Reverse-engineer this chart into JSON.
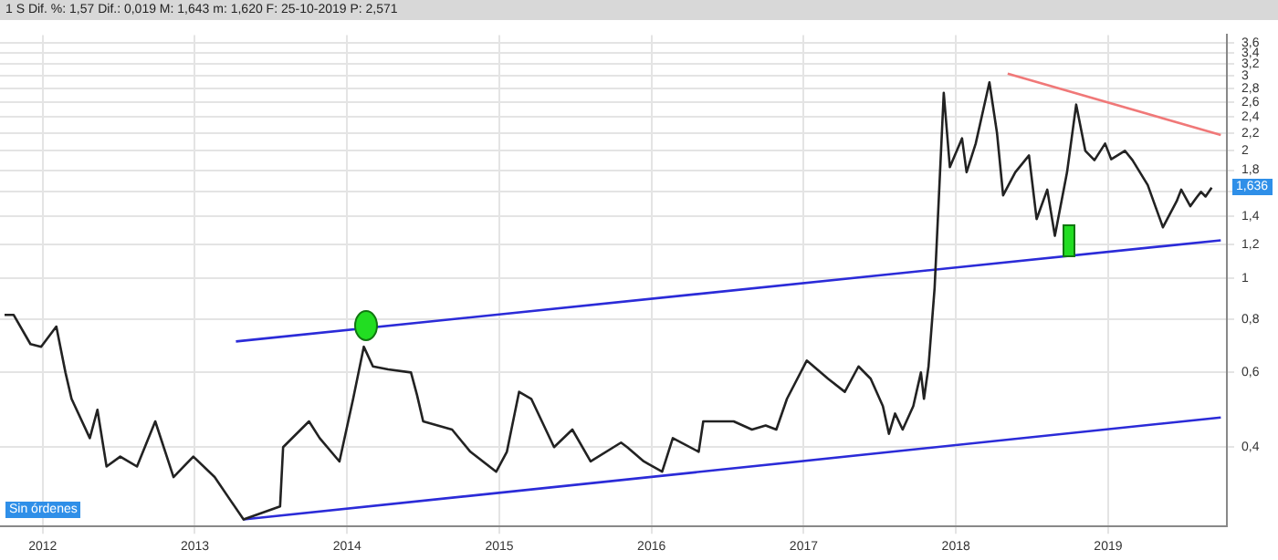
{
  "chart_data": {
    "type": "line",
    "title": "1 S  Dif. %: 1,57  Dif.: 0,019  M: 1,643  m: 1,620  F: 25-10-2019  P: 2,571",
    "log": true,
    "grid": true,
    "legend": false,
    "marker": "none",
    "line_style": "solid",
    "xlim": [
      2011.72,
      2019.78
    ],
    "xticks": [
      2012,
      2013,
      2014,
      2015,
      2016,
      2017,
      2018,
      2019
    ],
    "ylim": [
      0.26,
      3.75
    ],
    "yticks": [
      {
        "value": 0.4,
        "label": "0,4"
      },
      {
        "value": 0.6,
        "label": "0,6"
      },
      {
        "value": 0.8,
        "label": "0,8"
      },
      {
        "value": 1,
        "label": "1"
      },
      {
        "value": 1.2,
        "label": "1,2"
      },
      {
        "value": 1.4,
        "label": "1,4"
      },
      {
        "value": 1.6,
        "label": null
      },
      {
        "value": 1.8,
        "label": "1,8"
      },
      {
        "value": 2,
        "label": "2"
      },
      {
        "value": 2.2,
        "label": "2,2"
      },
      {
        "value": 2.4,
        "label": "2,4"
      },
      {
        "value": 2.6,
        "label": "2,6"
      },
      {
        "value": 2.8,
        "label": "2,8"
      },
      {
        "value": 3,
        "label": "3"
      },
      {
        "value": 3.2,
        "label": "3,2"
      },
      {
        "value": 3.4,
        "label": "3,4"
      },
      {
        "value": 3.6,
        "label": "3,6"
      }
    ],
    "annotations": [
      "Sin órdenes",
      "1,636"
    ],
    "series": [
      {
        "color": "#222222",
        "x": [
          2011.75,
          2011.81,
          2011.92,
          2011.99,
          2012.09,
          2012.15,
          2012.19,
          2012.31,
          2012.36,
          2012.42,
          2012.51,
          2012.62,
          2012.74,
          2012.86,
          2012.99,
          2013.13,
          2013.32,
          2013.56,
          2013.58,
          2013.75,
          2013.82,
          2013.95,
          2014.04,
          2014.11,
          2014.17,
          2014.27,
          2014.42,
          2014.46,
          2014.5,
          2014.69,
          2014.81,
          2014.98,
          2015.05,
          2015.13,
          2015.21,
          2015.28,
          2015.36,
          2015.48,
          2015.6,
          2015.8,
          2015.84,
          2015.95,
          2016.07,
          2016.14,
          2016.31,
          2016.34,
          2016.54,
          2016.66,
          2016.75,
          2016.82,
          2016.89,
          2017.02,
          2017.16,
          2017.27,
          2017.36,
          2017.44,
          2017.52,
          2017.56,
          2017.6,
          2017.65,
          2017.72,
          2017.77,
          2017.79,
          2017.82,
          2017.86,
          2017.88,
          2017.92,
          2017.96,
          2018.04,
          2018.07,
          2018.13,
          2018.22,
          2018.27,
          2018.31,
          2018.39,
          2018.48,
          2018.53,
          2018.6,
          2018.65,
          2018.73,
          2018.79,
          2018.85,
          2018.91,
          2018.98,
          2019.02,
          2019.11,
          2019.16,
          2019.26,
          2019.31,
          2019.36,
          2019.45,
          2019.48,
          2019.54,
          2019.58,
          2019.61,
          2019.64,
          2019.68
        ],
        "values": [
          0.82,
          0.82,
          0.7,
          0.69,
          0.77,
          0.6,
          0.52,
          0.42,
          0.49,
          0.36,
          0.38,
          0.36,
          0.46,
          0.34,
          0.38,
          0.34,
          0.27,
          0.29,
          0.4,
          0.46,
          0.42,
          0.37,
          0.52,
          0.69,
          0.62,
          0.61,
          0.6,
          0.53,
          0.46,
          0.44,
          0.39,
          0.35,
          0.39,
          0.54,
          0.52,
          0.46,
          0.4,
          0.44,
          0.37,
          0.41,
          0.4,
          0.37,
          0.35,
          0.42,
          0.39,
          0.46,
          0.46,
          0.44,
          0.45,
          0.44,
          0.52,
          0.64,
          0.58,
          0.54,
          0.62,
          0.58,
          0.5,
          0.43,
          0.48,
          0.44,
          0.5,
          0.6,
          0.52,
          0.62,
          0.95,
          1.35,
          2.74,
          1.83,
          2.14,
          1.78,
          2.08,
          2.9,
          2.2,
          1.57,
          1.78,
          1.95,
          1.38,
          1.62,
          1.26,
          1.78,
          2.57,
          2.0,
          1.9,
          2.08,
          1.91,
          2.0,
          1.9,
          1.66,
          1.48,
          1.32,
          1.52,
          1.62,
          1.48,
          1.55,
          1.6,
          1.56,
          1.636
        ]
      },
      {
        "color": "#2b2bd8",
        "x": [
          2013.27,
          2019.74
        ],
        "values": [
          0.71,
          1.23
        ]
      },
      {
        "color": "#2b2bd8",
        "x": [
          2013.32,
          2019.74
        ],
        "values": [
          0.27,
          0.47
        ]
      },
      {
        "color": "#f07878",
        "x": [
          2018.34,
          2019.74
        ],
        "values": [
          3.04,
          2.18
        ]
      }
    ]
  }
}
